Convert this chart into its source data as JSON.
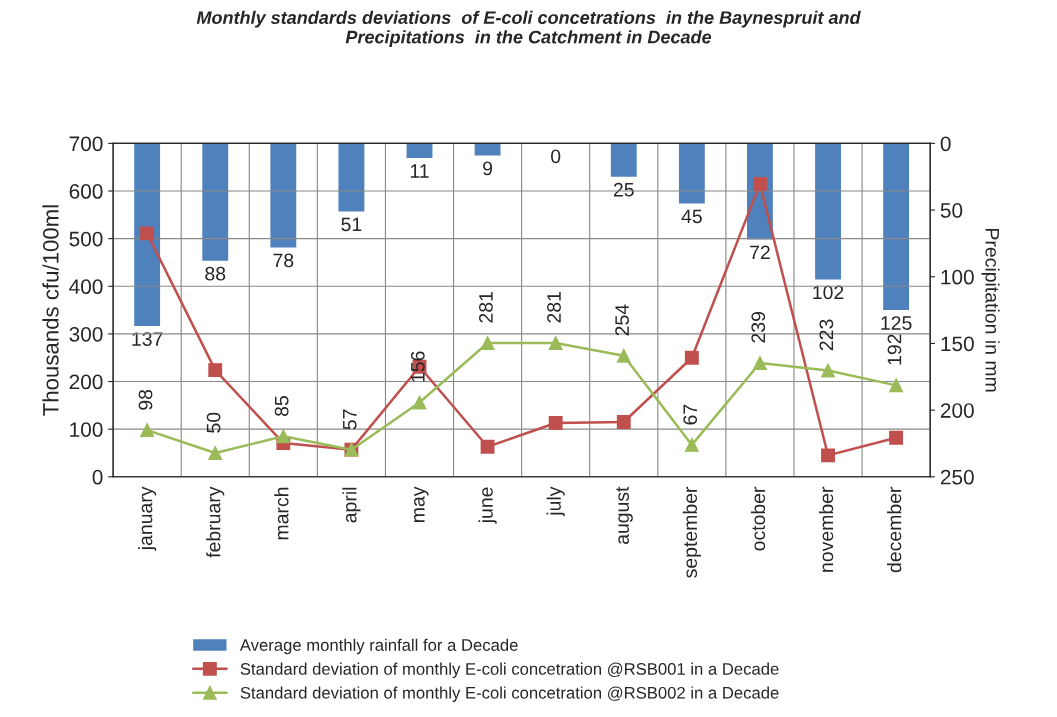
{
  "chart_data": {
    "type": "line",
    "title": "Monthly standards deviations  of E-coli concetrations  in the Baynespruit and\nPrecipitations  in the Catchment in Decade",
    "ylabel": "Thousands cfu/100ml",
    "y2label": "Precipitation in mm",
    "categories": [
      "january",
      "february",
      "march",
      "april",
      "may",
      "june",
      "july",
      "august",
      "september",
      "october",
      "november",
      "december"
    ],
    "ylim": [
      0,
      700
    ],
    "yticks": [
      0,
      100,
      200,
      300,
      400,
      500,
      600,
      700
    ],
    "y2lim": [
      250,
      0
    ],
    "y2ticks": [
      0,
      50,
      100,
      150,
      200,
      250
    ],
    "grid": true,
    "legend": "bottom",
    "series": [
      {
        "name": "Average monthly rainfall for a Decade",
        "type": "bar",
        "axis": "y2",
        "color": "#4f81bd",
        "data_labels": true,
        "values": [
          137,
          88,
          78,
          51,
          11,
          9,
          0,
          25,
          45,
          72,
          102,
          125
        ]
      },
      {
        "name": "Standard deviation of monthly E-coli concetration @RSB001 in a Decade",
        "color": "#c0504d",
        "marker": "square",
        "values": [
          511,
          224,
          71,
          57,
          231,
          63,
          113,
          115,
          250,
          615,
          45,
          82
        ]
      },
      {
        "name": "Standard deviation of monthly E-coli concetration @RSB002 in a Decade",
        "color": "#9bbb59",
        "marker": "triangle",
        "data_labels": true,
        "values": [
          98,
          50,
          85,
          57,
          156,
          281,
          281,
          254,
          67,
          239,
          223,
          192
        ]
      }
    ]
  }
}
